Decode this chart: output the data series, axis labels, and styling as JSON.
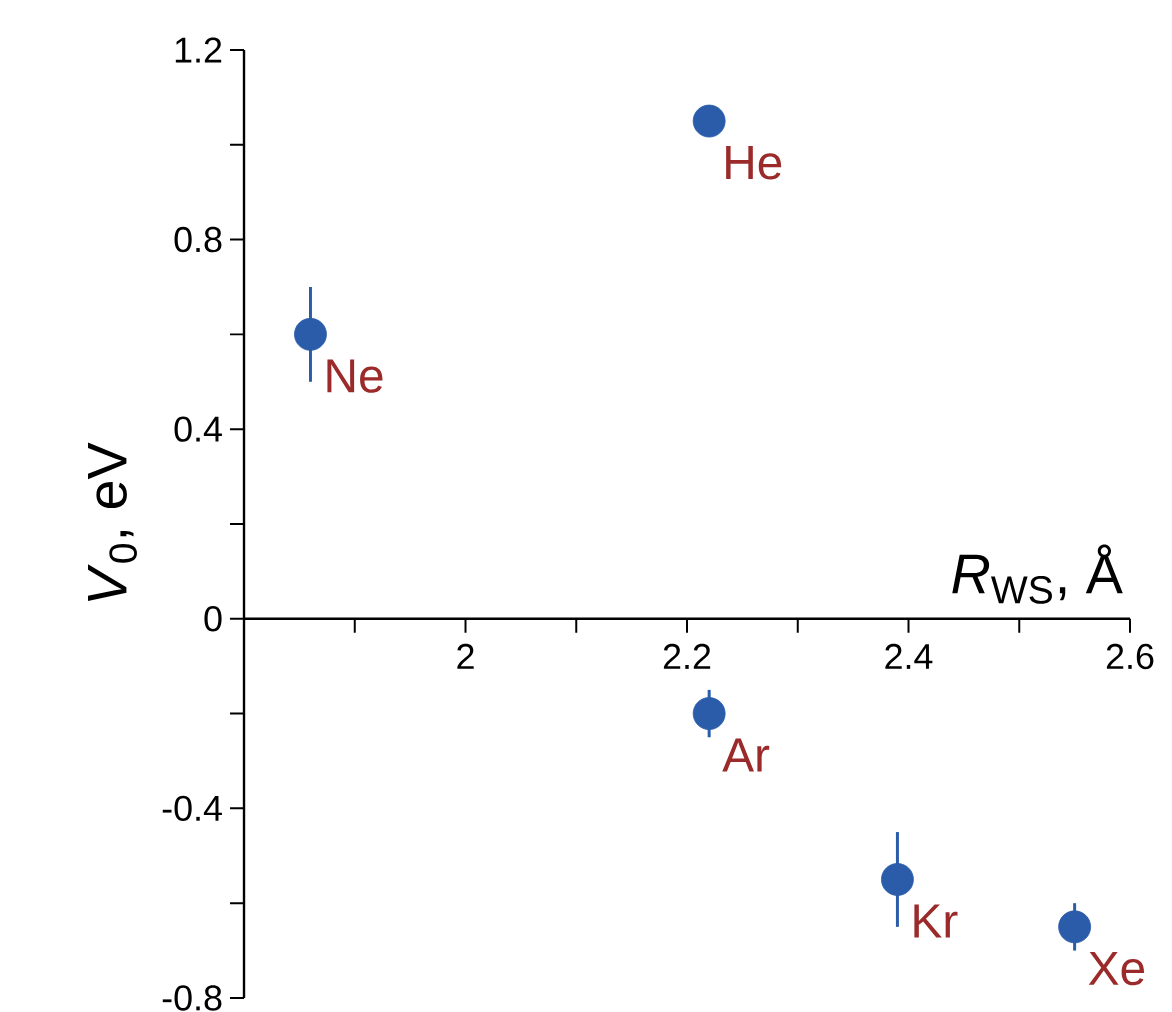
{
  "chart_data": {
    "type": "scatter",
    "xlabel": "*R*$_{WS}$, Å",
    "ylabel": "*V*$_{0}$, eV",
    "x": [
      1.86,
      2.22,
      2.22,
      2.39,
      2.55
    ],
    "values": [
      0.6,
      1.05,
      -0.2,
      -0.55,
      -0.65
    ],
    "errors": [
      0.1,
      null,
      0.05,
      0.1,
      0.05
    ],
    "color": "#2a5caa",
    "marker": "circle",
    "xlim": [
      1.8,
      2.6
    ],
    "xticks": [
      {
        "value": 1.9,
        "label": null
      },
      2,
      {
        "value": 2.1,
        "label": null
      },
      2.2,
      {
        "value": 2.3,
        "label": null
      },
      2.4,
      {
        "value": 2.5,
        "label": null
      },
      2.6
    ],
    "ylim": [
      -0.8,
      1.2
    ],
    "yticks": [
      -0.8,
      {
        "value": -0.6,
        "label": null
      },
      -0.4,
      {
        "value": -0.2,
        "label": null
      },
      0,
      {
        "value": 0.2,
        "label": null
      },
      0.4,
      {
        "value": 0.6,
        "label": null
      },
      0.8,
      {
        "value": 1.0,
        "label": null
      },
      1.2
    ],
    "annotations": [
      {
        "text": "Ne",
        "x": 1.86,
        "y": 0.6
      },
      {
        "text": "He",
        "x": 2.22,
        "y": 1.05
      },
      {
        "text": "Ar",
        "x": 2.22,
        "y": -0.2
      },
      {
        "text": "Kr",
        "x": 2.39,
        "y": -0.55
      },
      {
        "text": "Xe",
        "x": 2.55,
        "y": -0.65
      }
    ]
  }
}
